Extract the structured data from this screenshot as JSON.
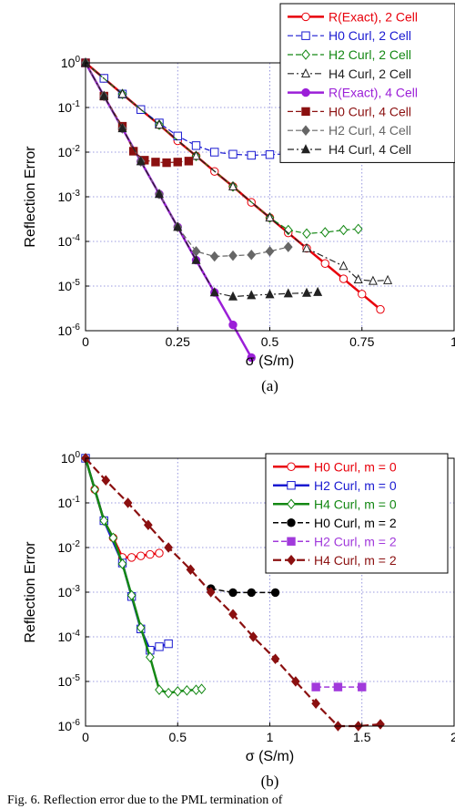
{
  "caption_text": "Fig. 6.   Reflection error due to the PML termination of",
  "chart_data": [
    {
      "panel_label": "(a)",
      "type": "line",
      "xlabel": "σ (S/m)",
      "ylabel": "Reflection Error",
      "xlim": [
        0,
        1
      ],
      "ylim_log10": [
        -6,
        0
      ],
      "y_scale": "log",
      "x_ticks": [
        "0",
        "0.25",
        "0.5",
        "0.75",
        "1"
      ],
      "y_ticks": [
        {
          "base": "10",
          "exp": "0"
        },
        {
          "base": "10",
          "exp": "-1"
        },
        {
          "base": "10",
          "exp": "-2"
        },
        {
          "base": "10",
          "exp": "-3"
        },
        {
          "base": "10",
          "exp": "-4"
        },
        {
          "base": "10",
          "exp": "-5"
        },
        {
          "base": "10",
          "exp": "-6"
        }
      ],
      "grid": true,
      "legend_position": "top-right",
      "series": [
        {
          "name": "R(Exact), 2 Cell",
          "color": "#e8000b",
          "dash": "",
          "width": 2.5,
          "marker": "circle-open",
          "points": [
            [
              0,
              1.0
            ],
            [
              0.05,
              0.45
            ],
            [
              0.1,
              0.2
            ],
            [
              0.15,
              0.09
            ],
            [
              0.2,
              0.041
            ],
            [
              0.25,
              0.018
            ],
            [
              0.3,
              0.0082
            ],
            [
              0.35,
              0.0037
            ],
            [
              0.4,
              0.0017
            ],
            [
              0.45,
              0.00075
            ],
            [
              0.5,
              0.00034
            ],
            [
              0.55,
              0.000155
            ],
            [
              0.6,
              7e-05
            ],
            [
              0.65,
              3.2e-05
            ],
            [
              0.7,
              1.45e-05
            ],
            [
              0.75,
              6.6e-06
            ],
            [
              0.8,
              3e-06
            ]
          ]
        },
        {
          "name": "H0 Curl, 2 Cell",
          "color": "#1a1ad1",
          "dash": "6,3",
          "width": 1.2,
          "marker": "square-open",
          "points": [
            [
              0,
              1.0
            ],
            [
              0.05,
              0.45
            ],
            [
              0.1,
              0.2
            ],
            [
              0.15,
              0.09
            ],
            [
              0.2,
              0.045
            ],
            [
              0.25,
              0.023
            ],
            [
              0.3,
              0.014
            ],
            [
              0.35,
              0.01
            ],
            [
              0.4,
              0.009
            ],
            [
              0.45,
              0.0085
            ],
            [
              0.5,
              0.0088
            ],
            [
              0.55,
              0.0092
            ],
            [
              0.6,
              0.0095
            ],
            [
              0.65,
              0.01
            ],
            [
              0.7,
              0.0105
            ]
          ]
        },
        {
          "name": "H2 Curl, 2 Cell",
          "color": "#148814",
          "dash": "6,3",
          "width": 1.2,
          "marker": "diamond-open",
          "points": [
            [
              0,
              1.0
            ],
            [
              0.1,
              0.2
            ],
            [
              0.2,
              0.041
            ],
            [
              0.3,
              0.0082
            ],
            [
              0.4,
              0.0017
            ],
            [
              0.5,
              0.00034
            ],
            [
              0.55,
              0.00018
            ],
            [
              0.6,
              0.00015
            ],
            [
              0.65,
              0.00016
            ],
            [
              0.7,
              0.00018
            ],
            [
              0.74,
              0.00019
            ]
          ]
        },
        {
          "name": "H4 Curl, 2 Cell",
          "color": "#222222",
          "dash": "7,3,2,3",
          "width": 1.2,
          "marker": "triangle-open",
          "points": [
            [
              0,
              1.0
            ],
            [
              0.1,
              0.2
            ],
            [
              0.2,
              0.041
            ],
            [
              0.3,
              0.0082
            ],
            [
              0.4,
              0.0017
            ],
            [
              0.5,
              0.00034
            ],
            [
              0.6,
              7e-05
            ],
            [
              0.7,
              2.8e-05
            ],
            [
              0.74,
              1.4e-05
            ],
            [
              0.78,
              1.3e-05
            ],
            [
              0.82,
              1.35e-05
            ]
          ]
        },
        {
          "name": "R(Exact), 4 Cell",
          "color": "#9b1fd8",
          "dash": "",
          "width": 2.5,
          "marker": "circle-filled",
          "points": [
            [
              0,
              1.0
            ],
            [
              0.05,
              0.18
            ],
            [
              0.1,
              0.034
            ],
            [
              0.15,
              0.0062
            ],
            [
              0.2,
              0.00115
            ],
            [
              0.25,
              0.00021
            ],
            [
              0.3,
              3.8e-05
            ],
            [
              0.35,
              7.2e-06
            ],
            [
              0.4,
              1.35e-06
            ],
            [
              0.45,
              2.5e-07
            ]
          ]
        },
        {
          "name": "H0 Curl, 4 Cell",
          "color": "#8b1010",
          "dash": "6,3",
          "width": 1.2,
          "marker": "square-filled",
          "points": [
            [
              0,
              1.0
            ],
            [
              0.05,
              0.18
            ],
            [
              0.1,
              0.038
            ],
            [
              0.13,
              0.0105
            ],
            [
              0.16,
              0.0066
            ],
            [
              0.19,
              0.006
            ],
            [
              0.22,
              0.0058
            ],
            [
              0.25,
              0.006
            ],
            [
              0.28,
              0.0063
            ]
          ]
        },
        {
          "name": "H2 Curl, 4 Cell",
          "color": "#666666",
          "dash": "6,3",
          "width": 1.2,
          "marker": "diamond-filled",
          "points": [
            [
              0,
              1.0
            ],
            [
              0.05,
              0.18
            ],
            [
              0.1,
              0.034
            ],
            [
              0.15,
              0.0062
            ],
            [
              0.2,
              0.00115
            ],
            [
              0.25,
              0.00021
            ],
            [
              0.3,
              6e-05
            ],
            [
              0.35,
              4.6e-05
            ],
            [
              0.4,
              4.8e-05
            ],
            [
              0.45,
              5e-05
            ],
            [
              0.5,
              6e-05
            ],
            [
              0.55,
              7.5e-05
            ]
          ]
        },
        {
          "name": "H4 Curl, 4 Cell",
          "color": "#222222",
          "dash": "7,3,2,3",
          "width": 1.2,
          "marker": "triangle-filled",
          "points": [
            [
              0,
              1.0
            ],
            [
              0.05,
              0.18
            ],
            [
              0.1,
              0.034
            ],
            [
              0.15,
              0.0062
            ],
            [
              0.2,
              0.00115
            ],
            [
              0.25,
              0.00021
            ],
            [
              0.3,
              3.8e-05
            ],
            [
              0.35,
              7.2e-06
            ],
            [
              0.4,
              5.8e-06
            ],
            [
              0.45,
              6.2e-06
            ],
            [
              0.5,
              6.5e-06
            ],
            [
              0.55,
              6.8e-06
            ],
            [
              0.6,
              7e-06
            ],
            [
              0.63,
              7.3e-06
            ]
          ]
        }
      ]
    },
    {
      "panel_label": "(b)",
      "type": "line",
      "xlabel": "σ (S/m)",
      "ylabel": "Reflection Error",
      "xlim": [
        0,
        2
      ],
      "ylim_log10": [
        -6,
        0
      ],
      "y_scale": "log",
      "x_ticks": [
        "0",
        "0.5",
        "1",
        "1.5",
        "2"
      ],
      "y_ticks": [
        {
          "base": "10",
          "exp": "0"
        },
        {
          "base": "10",
          "exp": "-1"
        },
        {
          "base": "10",
          "exp": "-2"
        },
        {
          "base": "10",
          "exp": "-3"
        },
        {
          "base": "10",
          "exp": "-4"
        },
        {
          "base": "10",
          "exp": "-5"
        },
        {
          "base": "10",
          "exp": "-6"
        }
      ],
      "grid": true,
      "legend_position": "top-right",
      "series": [
        {
          "name": "H0 Curl, m = 0",
          "color": "#e8000b",
          "dash": "",
          "width": 2.5,
          "marker": "circle-open",
          "points": [
            [
              0,
              1.0
            ],
            [
              0.05,
              0.2
            ],
            [
              0.1,
              0.04
            ],
            [
              0.15,
              0.0165
            ],
            [
              0.2,
              0.006
            ],
            [
              0.25,
              0.006
            ],
            [
              0.3,
              0.0065
            ],
            [
              0.35,
              0.007
            ],
            [
              0.4,
              0.0075
            ]
          ]
        },
        {
          "name": "H2 Curl, m = 0",
          "color": "#1a1ad1",
          "dash": "",
          "width": 2.5,
          "marker": "square-open",
          "points": [
            [
              0,
              1.0
            ],
            [
              0.1,
              0.04
            ],
            [
              0.2,
              0.0045
            ],
            [
              0.25,
              0.0008
            ],
            [
              0.3,
              0.00015
            ],
            [
              0.35,
              5e-05
            ],
            [
              0.4,
              6e-05
            ],
            [
              0.45,
              7e-05
            ]
          ]
        },
        {
          "name": "H4 Curl, m = 0",
          "color": "#148814",
          "dash": "",
          "width": 2.5,
          "marker": "diamond-open",
          "points": [
            [
              0,
              1.0
            ],
            [
              0.05,
              0.2
            ],
            [
              0.1,
              0.04
            ],
            [
              0.15,
              0.0165
            ],
            [
              0.2,
              0.0043
            ],
            [
              0.25,
              0.00085
            ],
            [
              0.3,
              0.00016
            ],
            [
              0.35,
              3.5e-05
            ],
            [
              0.4,
              6.5e-06
            ],
            [
              0.45,
              5.5e-06
            ],
            [
              0.5,
              6e-06
            ],
            [
              0.55,
              6.3e-06
            ],
            [
              0.6,
              6.5e-06
            ],
            [
              0.63,
              6.8e-06
            ]
          ]
        },
        {
          "name": "H0 Curl, m = 2",
          "color": "#000000",
          "dash": "6,3",
          "width": 1.5,
          "marker": "circle-filled",
          "points": [
            [
              0.68,
              0.0012
            ],
            [
              0.8,
              0.00098
            ],
            [
              0.9,
              0.00098
            ],
            [
              1.03,
              0.00098
            ]
          ]
        },
        {
          "name": "H2 Curl, m = 2",
          "color": "#a13adb",
          "dash": "6,3",
          "width": 1.5,
          "marker": "square-filled",
          "points": [
            [
              1.25,
              7.5e-06
            ],
            [
              1.37,
              7.5e-06
            ],
            [
              1.5,
              7.5e-06
            ]
          ]
        },
        {
          "name": "H4 Curl, m = 2",
          "color": "#8b1010",
          "dash": "9,4",
          "width": 2.2,
          "marker": "diamond-filled",
          "points": [
            [
              0,
              1.0
            ],
            [
              0.11,
              0.32
            ],
            [
              0.23,
              0.1
            ],
            [
              0.34,
              0.032
            ],
            [
              0.45,
              0.01
            ],
            [
              0.57,
              0.0032
            ],
            [
              0.68,
              0.001
            ],
            [
              0.8,
              0.00032
            ],
            [
              0.91,
              0.0001
            ],
            [
              1.03,
              3.2e-05
            ],
            [
              1.14,
              1e-05
            ],
            [
              1.25,
              3.2e-06
            ],
            [
              1.37,
              1e-06
            ],
            [
              1.48,
              1e-06
            ],
            [
              1.6,
              1.1e-06
            ]
          ]
        }
      ]
    }
  ]
}
